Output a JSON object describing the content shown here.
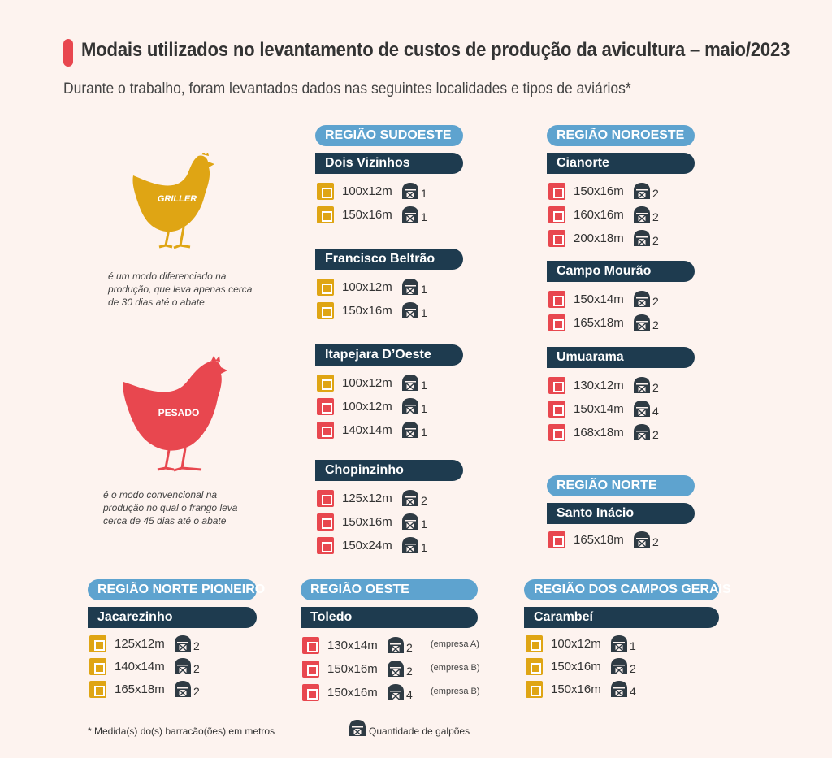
{
  "title": "Modais utilizados no levantamento de custos de produção da avicultura – maio/2023",
  "subtitle": "Durante o trabalho, foram levantados dados nas seguintes localidades e tipos de aviários*",
  "colors": {
    "griller": "#dfa514",
    "pesado": "#e8474f",
    "region": "#5ea3cf",
    "city": "#1e3b4f"
  },
  "griller": {
    "label": "GRILLER",
    "description": "é um modo diferenciado na produção, que leva apenas cerca de 30 dias até o abate"
  },
  "pesado": {
    "label": "PESADO",
    "description": "é o modo convencional na produção no qual o frango leva cerca de 45 dias até o abate"
  },
  "regions": {
    "sudoeste": {
      "name": "REGIÃO SUDOESTE",
      "cities": [
        {
          "name": "Dois Vizinhos",
          "rows": [
            {
              "type": "griller",
              "size": "100x12m",
              "qty": "1"
            },
            {
              "type": "griller",
              "size": "150x16m",
              "qty": "1"
            }
          ]
        },
        {
          "name": "Francisco Beltrão",
          "rows": [
            {
              "type": "griller",
              "size": "100x12m",
              "qty": "1"
            },
            {
              "type": "griller",
              "size": "150x16m",
              "qty": "1"
            }
          ]
        },
        {
          "name": "Itapejara D’Oeste",
          "rows": [
            {
              "type": "griller",
              "size": "100x12m",
              "qty": "1"
            },
            {
              "type": "pesado",
              "size": "100x12m",
              "qty": "1"
            },
            {
              "type": "pesado",
              "size": "140x14m",
              "qty": "1"
            }
          ]
        },
        {
          "name": "Chopinzinho",
          "rows": [
            {
              "type": "pesado",
              "size": "125x12m",
              "qty": "2"
            },
            {
              "type": "pesado",
              "size": "150x16m",
              "qty": "1"
            },
            {
              "type": "pesado",
              "size": "150x24m",
              "qty": "1"
            }
          ]
        }
      ]
    },
    "noroeste": {
      "name": "REGIÃO NOROESTE",
      "cities": [
        {
          "name": "Cianorte",
          "rows": [
            {
              "type": "pesado",
              "size": "150x16m",
              "qty": "2"
            },
            {
              "type": "pesado",
              "size": "160x16m",
              "qty": "2"
            },
            {
              "type": "pesado",
              "size": "200x18m",
              "qty": "2"
            }
          ]
        },
        {
          "name": "Campo Mourão",
          "rows": [
            {
              "type": "pesado",
              "size": "150x14m",
              "qty": "2"
            },
            {
              "type": "pesado",
              "size": "165x18m",
              "qty": "2"
            }
          ]
        },
        {
          "name": "Umuarama",
          "rows": [
            {
              "type": "pesado",
              "size": "130x12m",
              "qty": "2"
            },
            {
              "type": "pesado",
              "size": "150x14m",
              "qty": "4"
            },
            {
              "type": "pesado",
              "size": "168x18m",
              "qty": "2"
            }
          ]
        }
      ]
    },
    "norte": {
      "name": "REGIÃO NORTE",
      "cities": [
        {
          "name": "Santo Inácio",
          "rows": [
            {
              "type": "pesado",
              "size": "165x18m",
              "qty": "2"
            }
          ]
        }
      ]
    },
    "norte_pioneiro": {
      "name": "REGIÃO NORTE PIONEIRO",
      "cities": [
        {
          "name": "Jacarezinho",
          "rows": [
            {
              "type": "griller",
              "size": "125x12m",
              "qty": "2"
            },
            {
              "type": "griller",
              "size": "140x14m",
              "qty": "2"
            },
            {
              "type": "griller",
              "size": "165x18m",
              "qty": "2"
            }
          ]
        }
      ]
    },
    "oeste": {
      "name": "REGIÃO OESTE",
      "cities": [
        {
          "name": "Toledo",
          "rows": [
            {
              "type": "pesado",
              "size": "130x14m",
              "qty": "2",
              "note": "(empresa A)"
            },
            {
              "type": "pesado",
              "size": "150x16m",
              "qty": "2",
              "note": "(empresa B)"
            },
            {
              "type": "pesado",
              "size": "150x16m",
              "qty": "4",
              "note": "(empresa B)"
            }
          ]
        }
      ]
    },
    "campos_gerais": {
      "name": "REGIÃO DOS CAMPOS GERAIS",
      "cities": [
        {
          "name": "Carambeí",
          "rows": [
            {
              "type": "griller",
              "size": "100x12m",
              "qty": "1"
            },
            {
              "type": "griller",
              "size": "150x16m",
              "qty": "2"
            },
            {
              "type": "griller",
              "size": "150x16m",
              "qty": "4"
            }
          ]
        }
      ]
    }
  },
  "footer": {
    "measure_note": "* Medida(s) do(s) barracão(ões) em metros",
    "barn_legend": "Quantidade de galpões",
    "barn_icon": "barn-icon"
  }
}
